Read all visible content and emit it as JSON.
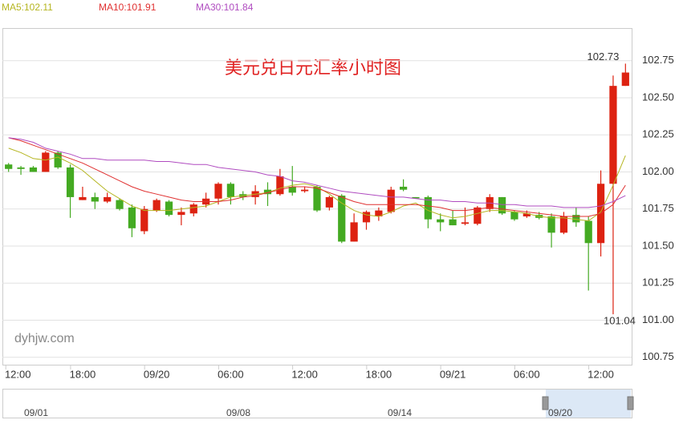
{
  "chart_data": {
    "type": "candlestick",
    "title": "美元兑日元汇率小时图",
    "watermark": "dyhjw.com",
    "up_color": "#dd2211",
    "down_color": "#44aa22",
    "open": [
      102.05,
      102.03,
      102.03,
      102.0,
      102.13,
      102.03,
      101.81,
      101.83,
      101.8,
      101.81,
      101.76,
      101.6,
      101.74,
      101.8,
      101.71,
      101.72,
      101.78,
      101.82,
      101.92,
      101.85,
      101.83,
      101.88,
      101.85,
      101.9,
      101.87,
      101.9,
      101.76,
      101.84,
      101.53,
      101.66,
      101.7,
      101.73,
      101.9,
      101.83,
      101.83,
      101.68,
      101.68,
      101.65,
      101.65,
      101.75,
      101.83,
      101.73,
      101.7,
      101.71,
      101.7,
      101.59,
      101.71,
      101.67,
      101.52,
      101.92,
      102.58
    ],
    "high": [
      102.06,
      102.04,
      102.04,
      102.14,
      102.14,
      102.05,
      101.9,
      101.86,
      101.86,
      101.82,
      101.78,
      101.77,
      101.82,
      101.81,
      101.76,
      101.79,
      101.86,
      101.93,
      101.93,
      101.87,
      101.91,
      101.93,
      102.02,
      102.04,
      101.9,
      101.91,
      101.84,
      101.85,
      101.72,
      101.74,
      101.76,
      101.9,
      101.95,
      101.83,
      101.84,
      101.72,
      101.74,
      101.76,
      101.77,
      101.85,
      101.83,
      101.74,
      101.74,
      101.73,
      101.72,
      101.73,
      101.76,
      101.7,
      102.01,
      102.65,
      102.73
    ],
    "low": [
      102.0,
      101.98,
      102.0,
      102.0,
      102.02,
      101.69,
      101.81,
      101.75,
      101.79,
      101.74,
      101.56,
      101.58,
      101.73,
      101.7,
      101.64,
      101.7,
      101.76,
      101.78,
      101.78,
      101.81,
      101.78,
      101.77,
      101.84,
      101.84,
      101.86,
      101.73,
      101.74,
      101.52,
      101.53,
      101.61,
      101.67,
      101.72,
      101.87,
      101.82,
      101.62,
      101.6,
      101.64,
      101.64,
      101.64,
      101.73,
      101.71,
      101.67,
      101.69,
      101.68,
      101.49,
      101.58,
      101.63,
      101.2,
      101.43,
      101.04,
      102.58
    ],
    "close": [
      102.02,
      102.02,
      102.0,
      102.13,
      102.03,
      101.83,
      101.83,
      101.8,
      101.83,
      101.75,
      101.62,
      101.75,
      101.81,
      101.71,
      101.73,
      101.78,
      101.82,
      101.92,
      101.83,
      101.83,
      101.87,
      101.85,
      101.97,
      101.86,
      101.88,
      101.74,
      101.83,
      101.53,
      101.66,
      101.73,
      101.74,
      101.88,
      101.88,
      101.83,
      101.68,
      101.66,
      101.64,
      101.66,
      101.76,
      101.83,
      101.72,
      101.68,
      101.72,
      101.69,
      101.59,
      101.7,
      101.66,
      101.52,
      101.92,
      102.58,
      102.67
    ],
    "lines": [
      {
        "name": "MA5:102.11",
        "color": "#b5b520",
        "values": [
          102.16,
          102.13,
          102.09,
          102.08,
          102.1,
          102.06,
          102.01,
          101.94,
          101.87,
          101.82,
          101.77,
          101.74,
          101.74,
          101.74,
          101.75,
          101.76,
          101.77,
          101.8,
          101.83,
          101.84,
          101.85,
          101.86,
          101.89,
          101.91,
          101.92,
          101.9,
          101.85,
          101.79,
          101.74,
          101.71,
          101.7,
          101.73,
          101.77,
          101.79,
          101.74,
          101.71,
          101.69,
          101.7,
          101.72,
          101.74,
          101.74,
          101.73,
          101.72,
          101.7,
          101.69,
          101.69,
          101.68,
          101.67,
          101.73,
          101.91,
          102.11
        ]
      },
      {
        "name": "MA10:101.91",
        "color": "#e03030",
        "values": [
          102.23,
          102.21,
          102.18,
          102.15,
          102.12,
          102.09,
          102.06,
          102.02,
          101.98,
          101.94,
          101.9,
          101.87,
          101.85,
          101.83,
          101.81,
          101.8,
          101.8,
          101.8,
          101.81,
          101.83,
          101.84,
          101.86,
          101.88,
          101.9,
          101.9,
          101.89,
          101.86,
          101.83,
          101.8,
          101.78,
          101.78,
          101.78,
          101.78,
          101.78,
          101.77,
          101.76,
          101.74,
          101.74,
          101.75,
          101.76,
          101.75,
          101.74,
          101.73,
          101.72,
          101.71,
          101.7,
          101.7,
          101.7,
          101.72,
          101.78,
          101.91
        ]
      },
      {
        "name": "MA30:101.84",
        "color": "#b04cc0",
        "values": [
          102.23,
          102.22,
          102.2,
          102.16,
          102.14,
          102.12,
          102.09,
          102.09,
          102.08,
          102.08,
          102.08,
          102.08,
          102.07,
          102.07,
          102.06,
          102.05,
          102.05,
          102.03,
          102.02,
          102.01,
          102.0,
          101.98,
          101.97,
          101.94,
          101.93,
          101.91,
          101.89,
          101.87,
          101.86,
          101.85,
          101.84,
          101.83,
          101.83,
          101.82,
          101.81,
          101.81,
          101.8,
          101.8,
          101.79,
          101.79,
          101.78,
          101.78,
          101.77,
          101.77,
          101.77,
          101.76,
          101.76,
          101.76,
          101.77,
          101.8,
          101.84
        ]
      }
    ],
    "xlim": [
      -0.5,
      50.5
    ],
    "xticks": [
      {
        "value": 0.75,
        "label": "12:00"
      },
      {
        "value": 6,
        "label": "18:00"
      },
      {
        "value": 12,
        "label": "09/20"
      },
      {
        "value": 18,
        "label": "06:00"
      },
      {
        "value": 24,
        "label": "12:00"
      },
      {
        "value": 30,
        "label": "18:00"
      },
      {
        "value": 36,
        "label": "09/21"
      },
      {
        "value": 42,
        "label": "06:00"
      },
      {
        "value": 48,
        "label": "12:00"
      }
    ],
    "ylim": [
      100.7,
      102.97
    ],
    "yticks": [
      100.75,
      {
        "value": 101.0,
        "label": "101.00"
      },
      101.25,
      {
        "value": 101.5,
        "label": "101.50"
      },
      101.75,
      {
        "value": 102.0,
        "label": "102.00"
      },
      102.25,
      {
        "value": 102.5,
        "label": "102.50"
      },
      102.75
    ],
    "grid": true,
    "navigator_labels": [
      "09/01",
      "09/08",
      "09/14",
      "09/20"
    ]
  }
}
